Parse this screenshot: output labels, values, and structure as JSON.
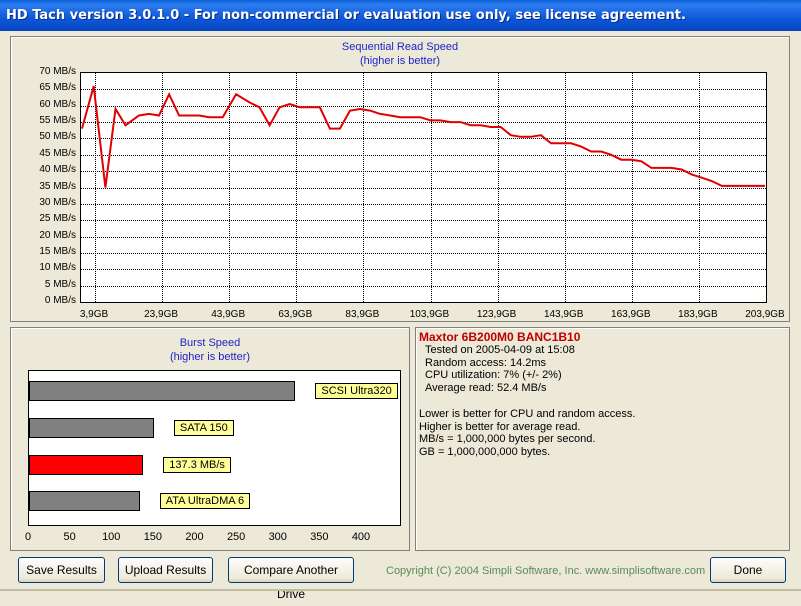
{
  "window": {
    "title": "HD Tach version 3.0.1.0  - For non-commercial or evaluation use only, see license agreement."
  },
  "read_chart": {
    "title": "Sequential Read Speed",
    "subtitle": "(higher is better)",
    "y_ticks": [
      "70 MB/s",
      "65 MB/s",
      "60 MB/s",
      "55 MB/s",
      "50 MB/s",
      "45 MB/s",
      "40 MB/s",
      "35 MB/s",
      "30 MB/s",
      "25 MB/s",
      "20 MB/s",
      "15 MB/s",
      "10 MB/s",
      "5 MB/s",
      "0 MB/s"
    ],
    "x_ticks": [
      "3,9GB",
      "23,9GB",
      "43,9GB",
      "63,9GB",
      "83,9GB",
      "103,9GB",
      "123,9GB",
      "143,9GB",
      "163,9GB",
      "183,9GB",
      "203,9GB"
    ],
    "line_color": "#e00000"
  },
  "chart_data": [
    {
      "type": "line",
      "title": "Sequential Read Speed",
      "subtitle": "(higher is better)",
      "xlabel": "",
      "ylabel": "",
      "ylim": [
        0,
        70
      ],
      "xlim": [
        3.9,
        203.9
      ],
      "grid": true,
      "x": [
        0.0,
        3.5,
        7.0,
        10.0,
        13.0,
        17.0,
        20.0,
        23.0,
        26.0,
        29.0,
        32.0,
        35.0,
        38.0,
        42.0,
        46.0,
        50.0,
        53.0,
        56.0,
        59.0,
        62.0,
        65.0,
        68.0,
        71.0,
        74.0,
        77.0,
        80.0,
        83.0,
        86.0,
        89.0,
        92.0,
        95.0,
        98.0,
        101.0,
        104.0,
        107.0,
        110.0,
        113.0,
        116.0,
        119.0,
        122.0,
        125.0,
        128.0,
        131.0,
        134.0,
        137.0,
        140.0,
        143.0,
        146.0,
        149.0,
        152.0,
        155.0,
        158.0,
        161.0,
        164.0,
        167.0,
        170.0,
        173.0,
        176.0,
        179.0,
        182.0,
        185.0,
        188.0,
        191.0,
        194.0,
        197.0,
        200.0,
        203.9
      ],
      "y": [
        53,
        66,
        35,
        59,
        54,
        57,
        57.5,
        57,
        63.5,
        57,
        57,
        57,
        56.5,
        56.5,
        63.5,
        61,
        59.5,
        54,
        59.5,
        60.5,
        59.5,
        59.5,
        59.5,
        53,
        53,
        58.5,
        59,
        58.5,
        57.5,
        57,
        56.5,
        56.5,
        56.5,
        55.5,
        55.5,
        55,
        55,
        54,
        54,
        53.5,
        53.5,
        51,
        50.5,
        50.5,
        51,
        48.5,
        48.5,
        48.5,
        47.5,
        46,
        46,
        45,
        43.5,
        43.5,
        43,
        41,
        41,
        41,
        40.5,
        39,
        38,
        37,
        35.5,
        35.5,
        35.5,
        35.5,
        35.5
      ],
      "color": "#e00000"
    },
    {
      "type": "bar",
      "title": "Burst Speed",
      "subtitle": "(higher is better)",
      "orientation": "horizontal",
      "xlim": [
        0,
        400
      ],
      "x_ticks": [
        0,
        50,
        100,
        150,
        200,
        250,
        300,
        350,
        400
      ],
      "bars": [
        {
          "label": "SCSI Ultra320",
          "value": 320,
          "color": "#808080"
        },
        {
          "label": "SATA 150",
          "value": 150,
          "color": "#808080"
        },
        {
          "label": "137.3 MB/s",
          "value": 137.3,
          "color": "#ff0000"
        },
        {
          "label": "ATA UltraDMA 6",
          "value": 133,
          "color": "#808080"
        }
      ]
    }
  ],
  "burst_chart": {
    "title": "Burst Speed",
    "subtitle": "(higher is better)",
    "ticks": [
      "0",
      "50",
      "100",
      "150",
      "200",
      "250",
      "300",
      "350",
      "400"
    ],
    "bars": [
      {
        "label": "SCSI Ultra320",
        "value": 320,
        "color": "#808080"
      },
      {
        "label": "SATA 150",
        "value": 150,
        "color": "#808080"
      },
      {
        "label": "137.3 MB/s",
        "value": 137.3,
        "color": "#ff0000"
      },
      {
        "label": "ATA UltraDMA 6",
        "value": 133,
        "color": "#808080"
      }
    ]
  },
  "info": {
    "drive": "Maxtor 6B200M0 BANC1B10",
    "tested": "Tested on 2005-04-09 at 15:08",
    "random_access": "Random access: 14.2ms",
    "cpu": "CPU utilization: 7% (+/- 2%)",
    "avg_read": "Average read: 52.4 MB/s",
    "note1": "Lower is better for CPU and random access.",
    "note2": "Higher is better for average read.",
    "note3": "MB/s = 1,000,000 bytes per second.",
    "note4": "GB = 1,000,000,000 bytes."
  },
  "buttons": {
    "save": "Save Results",
    "upload": "Upload Results",
    "compare": "Compare Another Drive",
    "done": "Done"
  },
  "copyright": "Copyright (C) 2004 Simpli Software, Inc. www.simplisoftware.com"
}
